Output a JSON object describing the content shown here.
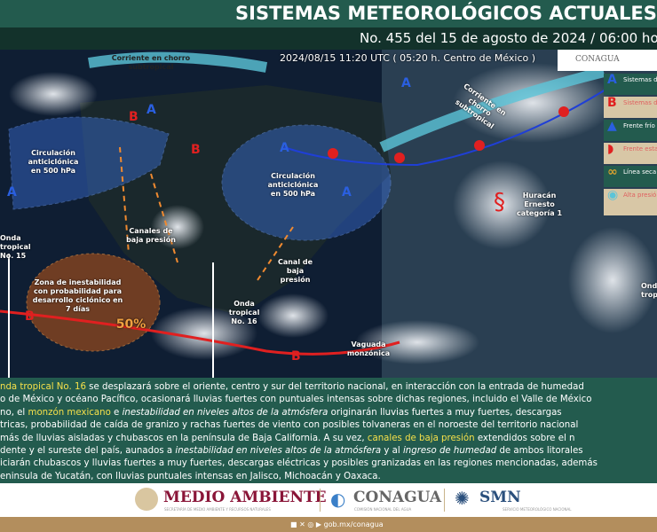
{
  "header": {
    "title": "SISTEMAS METEOROLÓGICOS ACTUALES",
    "subtitle": "No. 455 del 15 de agosto de 2024 / 06:00 horas"
  },
  "map": {
    "timestamp": "2024/08/15 11:20 UTC ( 05:20 h. Centro de México )",
    "logo_text": "CONAGUA",
    "labels": {
      "jet_west": "Corriente en chorro subtropical",
      "jet_east": "Corriente en chorro subtropical",
      "anticyclone_west": "Circulación anticiclónica en 500 hPa",
      "anticyclone_gulf": "Circulación anticiclónica en 500 hPa",
      "low_channels": "Canales de baja presión",
      "low_channel": "Canal de baja presión",
      "wave15": "Onda tropical No. 15",
      "wave16": "Onda tropical No. 16",
      "wave_east": "Onda tropical",
      "instability": "Zona de inestabilidad con probabilidad para desarrollo ciclónico en 7 días",
      "probability": "50%",
      "monsoon": "Vaguada monzónica",
      "hurricane": "Huracán Ernesto categoría 1"
    },
    "legend": [
      {
        "icon": "A",
        "label": "Sistemas de alta presión"
      },
      {
        "icon": "B",
        "label": "Sistemas de baja presión"
      },
      {
        "icon": "cold-front-icon",
        "label": "Frente frío"
      },
      {
        "icon": "stationary-front-icon",
        "label": "Frente estacionario"
      },
      {
        "icon": "dry-line-icon",
        "label": "Línea seca"
      },
      {
        "icon": "mid-level-high-icon",
        "label": "Alta presión en niveles medios de la atmósfera"
      }
    ]
  },
  "text": {
    "l1a": "nda tropical No. 16",
    "l1b": " se desplazará sobre el oriente, centro y sur del territorio nacional, en interacción con la entrada de humedad",
    "l2": "o de México y océano Pacífico, ocasionará lluvias fuertes con puntuales intensas sobre dichas regiones, incluido el Valle de México",
    "l3a": "no, el ",
    "l3b": "monzón mexicano",
    "l3c": " e ",
    "l3d": "inestabilidad en niveles altos de la atmósfera",
    "l3e": " originarán lluvias fuertes a muy fuertes, descargas",
    "l4": "tricas, probabilidad de caída de granizo y rachas fuertes de viento con posibles tolvaneras en el noroeste del territorio nacional",
    "l5a": "más de lluvias aisladas y chubascos en la península de Baja California. A su vez, ",
    "l5b": "canales de baja presión",
    "l5c": " extendidos sobre el n",
    "l6a": "dente y el sureste del país, aunados a ",
    "l6b": "inestabilidad en niveles altos de la atmósfera",
    "l6c": " y al ",
    "l6d": "ingreso de humedad",
    "l6e": " de ambos litorales",
    "l7": "iciarán chubascos y lluvias fuertes a muy fuertes, descargas eléctricas y posibles granizadas en las regiones mencionadas, además",
    "l8": "eninsula de Yucatán, con lluvias puntuales intensas en Jalisco, Michoacán y Oaxaca."
  },
  "logos": {
    "medio": "MEDIO AMBIENTE",
    "medio_sub": "SECRETARÍA DE MEDIO AMBIENTE Y RECURSOS NATURALES",
    "conagua": "CONAGUA",
    "conagua_sub": "COMISIÓN NACIONAL DEL AGUA",
    "smn": "SMN",
    "smn_sub": "SERVICIO METEOROLÓGICO NACIONAL"
  },
  "footer": {
    "url": "gob.mx/conagua"
  },
  "colors": {
    "header": "#235b4e",
    "subheader": "#13322b",
    "highlight": "#f5e04a",
    "footer": "#b38e5d",
    "front": "#1f3fd6",
    "low": "#e02020"
  }
}
